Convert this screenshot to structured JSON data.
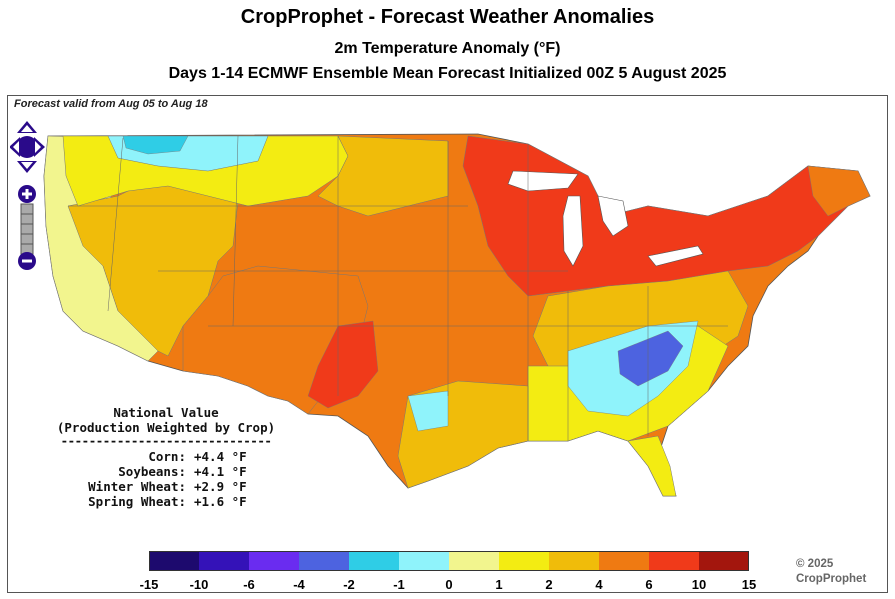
{
  "header": {
    "title": "CropProphet - Forecast Weather Anomalies",
    "subtitle": "2m Temperature Anomaly (°F)",
    "description": "Days 1-14 ECMWF Ensemble Mean Forecast Initialized 00Z 5 August 2025"
  },
  "map": {
    "valid_text": "Forecast valid from Aug 05 to Aug 18"
  },
  "national": {
    "heading1": "National Value",
    "heading2": "(Production Weighted by Crop)",
    "separator": "------------------------------",
    "rows": [
      {
        "crop": "Corn:",
        "value": "+4.4 °F"
      },
      {
        "crop": "Soybeans:",
        "value": "+4.1 °F"
      },
      {
        "crop": "Winter Wheat:",
        "value": "+2.9 °F"
      },
      {
        "crop": "Spring Wheat:",
        "value": "+1.6 °F"
      }
    ]
  },
  "legend": {
    "colors": [
      "#1d0a6e",
      "#3412b8",
      "#6a2cf0",
      "#4d63e0",
      "#2fcde6",
      "#8ff3fb",
      "#f2f58e",
      "#f3ec12",
      "#f0bc0a",
      "#ef7a12",
      "#f03a1a",
      "#a3160d"
    ],
    "ticks": [
      "-15",
      "-10",
      "-6",
      "-4",
      "-2",
      "-1",
      "0",
      "1",
      "2",
      "4",
      "6",
      "10",
      "15"
    ]
  },
  "copyright": {
    "line1": "© 2025",
    "line2": "CropProphet"
  },
  "navigation": {
    "pan_icon": "pan-arrows-icon",
    "zoom_in_icon": "plus-icon",
    "zoom_out_icon": "minus-icon"
  }
}
